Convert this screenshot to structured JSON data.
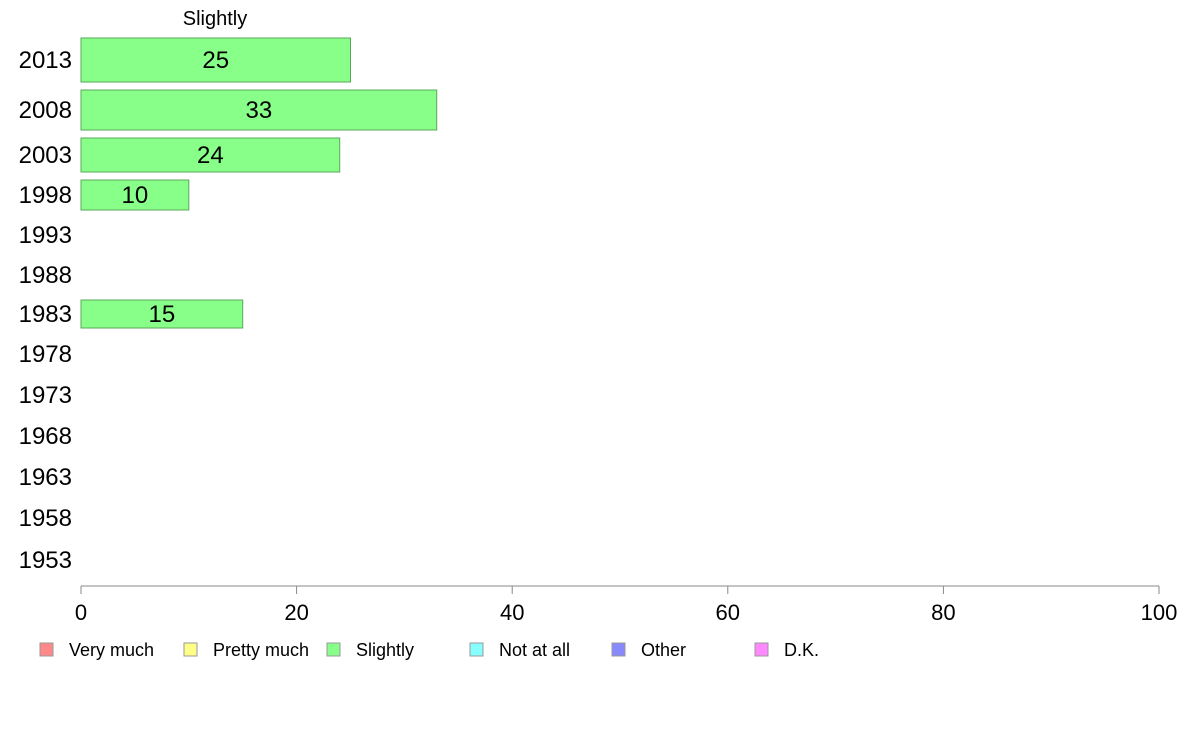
{
  "chart_data": {
    "type": "bar",
    "orientation": "horizontal",
    "title": "Slightly",
    "xlabel": "",
    "ylabel": "",
    "xlim": [
      0,
      100
    ],
    "x_ticks": [
      0,
      20,
      40,
      60,
      80,
      100
    ],
    "categories": [
      "2013",
      "2008",
      "2003",
      "1998",
      "1993",
      "1988",
      "1983",
      "1978",
      "1973",
      "1968",
      "1963",
      "1958",
      "1953"
    ],
    "series": [
      {
        "name": "Slightly",
        "color": "#88ff88",
        "values": [
          25,
          33,
          24,
          10,
          null,
          null,
          15,
          null,
          null,
          null,
          null,
          null,
          null
        ]
      }
    ],
    "legend": {
      "placement": "bottom",
      "items": [
        {
          "label": "Very much",
          "color": "#ff8888"
        },
        {
          "label": "Pretty much",
          "color": "#ffff88"
        },
        {
          "label": "Slightly",
          "color": "#88ff88"
        },
        {
          "label": "Not at all",
          "color": "#88ffff"
        },
        {
          "label": "Other",
          "color": "#8888ff"
        },
        {
          "label": "D.K.",
          "color": "#ff88ff"
        }
      ]
    },
    "grid": false
  }
}
